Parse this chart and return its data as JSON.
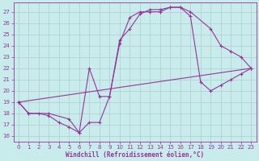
{
  "xlabel": "Windchill (Refroidissement éolien,°C)",
  "bg_color": "#c8ecec",
  "grid_color": "#b0cccc",
  "line_color": "#993399",
  "xlim": [
    -0.5,
    23.5
  ],
  "ylim": [
    15.5,
    27.8
  ],
  "xticks": [
    0,
    1,
    2,
    3,
    4,
    5,
    6,
    7,
    8,
    9,
    10,
    11,
    12,
    13,
    14,
    15,
    16,
    17,
    18,
    19,
    20,
    21,
    22,
    23
  ],
  "yticks": [
    16,
    17,
    18,
    19,
    20,
    21,
    22,
    23,
    24,
    25,
    26,
    27
  ],
  "line1_x": [
    0,
    1,
    2,
    3,
    4,
    5,
    6,
    7,
    8,
    9,
    10,
    11,
    12,
    13,
    14,
    15,
    16,
    17,
    18,
    19,
    20,
    21,
    22,
    23
  ],
  "line1_y": [
    19,
    18,
    18,
    17.8,
    17.2,
    16.8,
    16.3,
    17.2,
    17.2,
    19.5,
    24.2,
    26.5,
    27.0,
    27.0,
    27.0,
    27.4,
    27.4,
    26.6,
    20.8,
    20.0,
    20.5,
    21.0,
    21.5,
    22.0
  ],
  "line2_x": [
    0,
    1,
    3,
    5,
    6,
    7,
    8,
    9,
    10,
    11,
    12,
    13,
    14,
    15,
    16,
    17,
    19,
    20,
    21,
    22,
    23
  ],
  "line2_y": [
    19,
    18,
    18,
    17.5,
    16.3,
    22.0,
    19.5,
    19.5,
    24.5,
    25.5,
    26.8,
    27.2,
    27.2,
    27.4,
    27.4,
    27.0,
    25.5,
    24.0,
    23.5,
    23.0,
    22.0
  ],
  "line3_x": [
    0,
    23
  ],
  "line3_y": [
    19,
    22
  ]
}
